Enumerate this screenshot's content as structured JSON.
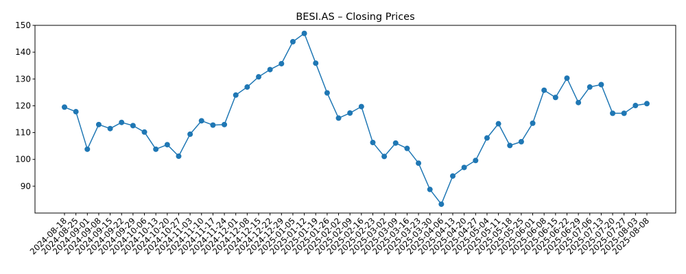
{
  "chart_data": {
    "type": "line",
    "title": "BESI.AS – Closing Prices",
    "xlabel": "",
    "ylabel": "",
    "ylim": [
      80,
      150
    ],
    "yticks": [
      90,
      100,
      110,
      120,
      130,
      140,
      150
    ],
    "grid": false,
    "legend": "none",
    "series": [
      {
        "color": "#1f77b4",
        "marker": "circle",
        "points": [
          {
            "x": "2024-08-18",
            "y": 119.5
          },
          {
            "x": "2024-08-25",
            "y": 117.8
          },
          {
            "x": "2024-09-01",
            "y": 103.8
          },
          {
            "x": "2024-09-08",
            "y": 113.0
          },
          {
            "x": "2024-09-15",
            "y": 111.5
          },
          {
            "x": "2024-09-22",
            "y": 113.8
          },
          {
            "x": "2024-09-29",
            "y": 112.6
          },
          {
            "x": "2024-10-06",
            "y": 110.2
          },
          {
            "x": "2024-10-13",
            "y": 103.8
          },
          {
            "x": "2024-10-20",
            "y": 105.5
          },
          {
            "x": "2024-10-27",
            "y": 101.2
          },
          {
            "x": "2024-11-03",
            "y": 109.4
          },
          {
            "x": "2024-11-10",
            "y": 114.4
          },
          {
            "x": "2024-11-17",
            "y": 112.8
          },
          {
            "x": "2024-11-24",
            "y": 113.0
          },
          {
            "x": "2024-12-01",
            "y": 124.0
          },
          {
            "x": "2024-12-08",
            "y": 127.0
          },
          {
            "x": "2024-12-15",
            "y": 130.8
          },
          {
            "x": "2024-12-22",
            "y": 133.5
          },
          {
            "x": "2024-12-29",
            "y": 135.7
          },
          {
            "x": "2025-01-05",
            "y": 143.9
          },
          {
            "x": "2025-01-12",
            "y": 147.0
          },
          {
            "x": "2025-01-19",
            "y": 135.9
          },
          {
            "x": "2025-01-26",
            "y": 124.8
          },
          {
            "x": "2025-02-02",
            "y": 115.4
          },
          {
            "x": "2025-02-09",
            "y": 117.3
          },
          {
            "x": "2025-02-16",
            "y": 119.7
          },
          {
            "x": "2025-02-23",
            "y": 106.3
          },
          {
            "x": "2025-03-02",
            "y": 101.1
          },
          {
            "x": "2025-03-09",
            "y": 106.1
          },
          {
            "x": "2025-03-16",
            "y": 104.1
          },
          {
            "x": "2025-03-23",
            "y": 98.6
          },
          {
            "x": "2025-03-30",
            "y": 88.8
          },
          {
            "x": "2025-04-06",
            "y": 83.3
          },
          {
            "x": "2025-04-13",
            "y": 93.8
          },
          {
            "x": "2025-04-20",
            "y": 97.0
          },
          {
            "x": "2025-04-27",
            "y": 99.6
          },
          {
            "x": "2025-05-04",
            "y": 108.0
          },
          {
            "x": "2025-05-11",
            "y": 113.3
          },
          {
            "x": "2025-05-18",
            "y": 105.2
          },
          {
            "x": "2025-05-25",
            "y": 106.6
          },
          {
            "x": "2025-06-01",
            "y": 113.5
          },
          {
            "x": "2025-06-08",
            "y": 125.8
          },
          {
            "x": "2025-06-15",
            "y": 123.1
          },
          {
            "x": "2025-06-22",
            "y": 130.3
          },
          {
            "x": "2025-06-29",
            "y": 121.2
          },
          {
            "x": "2025-07-06",
            "y": 127.0
          },
          {
            "x": "2025-07-13",
            "y": 127.9
          },
          {
            "x": "2025-07-20",
            "y": 117.2
          },
          {
            "x": "2025-07-27",
            "y": 117.2
          },
          {
            "x": "2025-08-03",
            "y": 120.1
          },
          {
            "x": "2025-08-08",
            "y": 120.8
          }
        ]
      }
    ]
  }
}
